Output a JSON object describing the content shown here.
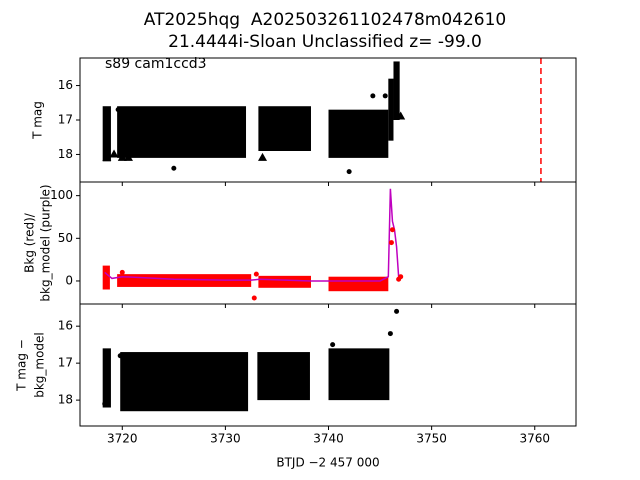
{
  "chart_data": [
    {
      "type": "scatter",
      "title": [
        "AT2025hqg  A202503261102478m042610",
        "21.4444i-Sloan Unclassified z= -99.0"
      ],
      "annotation": "s89 cam1ccd3",
      "ylabel": [
        "T mag"
      ],
      "xlim": [
        3715.9,
        3764.0
      ],
      "xticks": [
        3720,
        3730,
        3740,
        3750,
        3760
      ],
      "xticklabels": false,
      "ylim": [
        18.8,
        15.2
      ],
      "yticks": [
        16,
        17,
        18
      ],
      "color": "#000000",
      "bands": [
        {
          "x": [
            3718.1,
            3718.9
          ],
          "y": [
            16.6,
            18.2
          ]
        },
        {
          "x": [
            3719.5,
            3732.0
          ],
          "y": [
            16.6,
            18.1
          ]
        },
        {
          "x": [
            3733.2,
            3738.3
          ],
          "y": [
            16.6,
            17.9
          ]
        },
        {
          "x": [
            3740.0,
            3745.8
          ],
          "y": [
            16.7,
            18.1
          ]
        },
        {
          "x": [
            3745.8,
            3746.3
          ],
          "y": [
            15.8,
            17.6
          ]
        },
        {
          "x": [
            3746.3,
            3746.9
          ],
          "y": [
            15.3,
            17.0
          ]
        }
      ],
      "points": {
        "x": [
          3744.3,
          3745.5,
          3725.0,
          3742.0,
          3719.6
        ],
        "y": [
          16.3,
          16.3,
          18.4,
          18.5,
          16.7
        ]
      },
      "triangles": {
        "x": [
          3718.5,
          3719.2,
          3720.0,
          3720.6,
          3733.6,
          3745.2,
          3747.0
        ],
        "y": [
          18.1,
          18.0,
          18.1,
          18.1,
          18.1,
          17.6,
          16.9
        ]
      },
      "vlines": [
        {
          "x": 3760.6,
          "color": "#ff0000"
        }
      ]
    },
    {
      "type": "scatter",
      "ylabel": [
        "Bkg (red)/",
        "bkg_model (purple)"
      ],
      "xlim": [
        3715.9,
        3764.0
      ],
      "xticks": [
        3720,
        3730,
        3740,
        3750,
        3760
      ],
      "xticklabels": false,
      "ylim": [
        -27,
        116
      ],
      "yticks": [
        0,
        50,
        100
      ],
      "color": "#ff0000",
      "bands": [
        {
          "x": [
            3718.1,
            3718.8
          ],
          "y": [
            -10,
            18
          ]
        },
        {
          "x": [
            3719.5,
            3732.5
          ],
          "y": [
            -7,
            8
          ]
        },
        {
          "x": [
            3733.2,
            3738.3
          ],
          "y": [
            -8,
            6
          ]
        },
        {
          "x": [
            3740.0,
            3745.8
          ],
          "y": [
            -12,
            5
          ]
        }
      ],
      "points": {
        "x": [
          3720.0,
          3733.0,
          3746.1,
          3746.2,
          3746.8,
          3747.0,
          3732.8
        ],
        "y": [
          10,
          8,
          45,
          60,
          2,
          5,
          -20
        ]
      },
      "line": {
        "color": "#bf00bf",
        "x": [
          3718.3,
          3719.0,
          3720.0,
          3725.0,
          3730.0,
          3732.5,
          3733.3,
          3738.3,
          3740.0,
          3745.0,
          3745.8,
          3746.0,
          3746.2,
          3746.4,
          3746.6,
          3746.8,
          3747.0
        ],
        "y": [
          10,
          3,
          5,
          2,
          1,
          1,
          2,
          0,
          0,
          0,
          5,
          108,
          70,
          60,
          40,
          5,
          3
        ]
      }
    },
    {
      "type": "scatter",
      "ylabel": [
        "T mag −",
        "bkg_model"
      ],
      "xlabel": "BTJD −2 457 000",
      "xlim": [
        3715.9,
        3764.0
      ],
      "xticks": [
        3720,
        3730,
        3740,
        3750,
        3760
      ],
      "xticklabels": true,
      "ylim": [
        18.7,
        15.4
      ],
      "yticks": [
        16,
        17,
        18
      ],
      "color": "#000000",
      "bands": [
        {
          "x": [
            3718.1,
            3718.9
          ],
          "y": [
            16.6,
            18.2
          ]
        },
        {
          "x": [
            3719.8,
            3732.2
          ],
          "y": [
            16.7,
            18.3
          ]
        },
        {
          "x": [
            3733.1,
            3738.2
          ],
          "y": [
            16.7,
            18.0
          ]
        },
        {
          "x": [
            3740.0,
            3745.9
          ],
          "y": [
            16.6,
            18.0
          ]
        }
      ],
      "points": {
        "x": [
          3719.8,
          3746.0,
          3746.6,
          3740.4,
          3718.3
        ],
        "y": [
          16.8,
          16.2,
          15.6,
          16.5,
          18.1
        ]
      }
    }
  ]
}
